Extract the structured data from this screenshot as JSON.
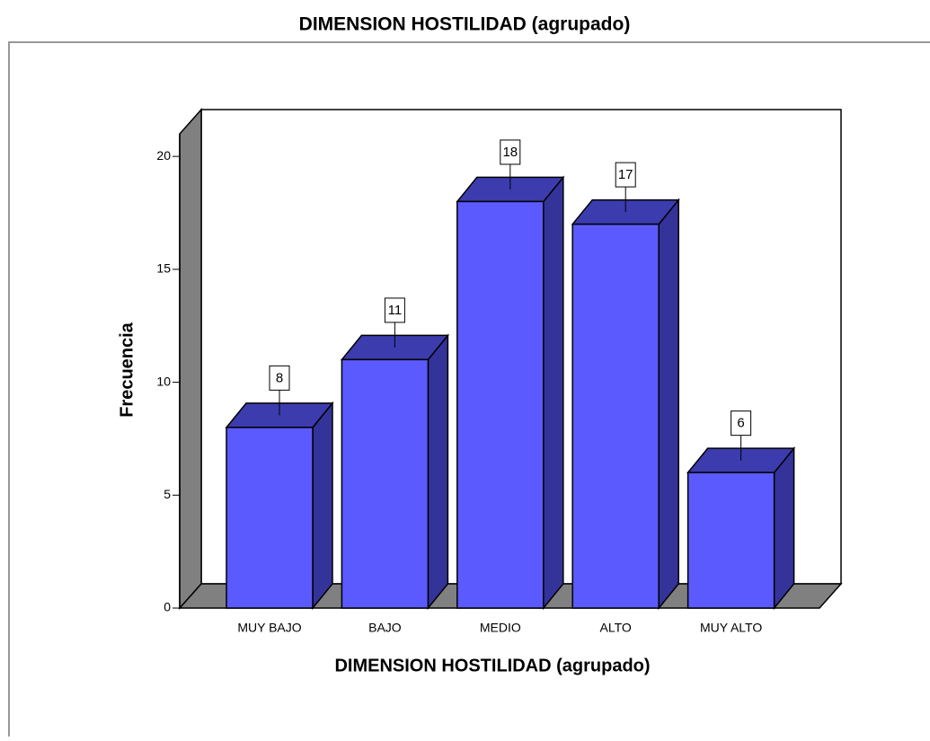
{
  "chart_data": {
    "type": "bar3d",
    "title": "DIMENSION HOSTILIDAD (agrupado)",
    "x_label": "DIMENSION HOSTILIDAD (agrupado)",
    "y_label": "Frecuencia",
    "categories": [
      "MUY BAJO",
      "BAJO",
      "MEDIO",
      "ALTO",
      "MUY ALTO"
    ],
    "values": [
      8,
      11,
      18,
      17,
      6
    ],
    "color": "#5a5aff",
    "ylim": [
      0,
      21
    ],
    "yticks": [
      0,
      5,
      10,
      15,
      20
    ]
  }
}
